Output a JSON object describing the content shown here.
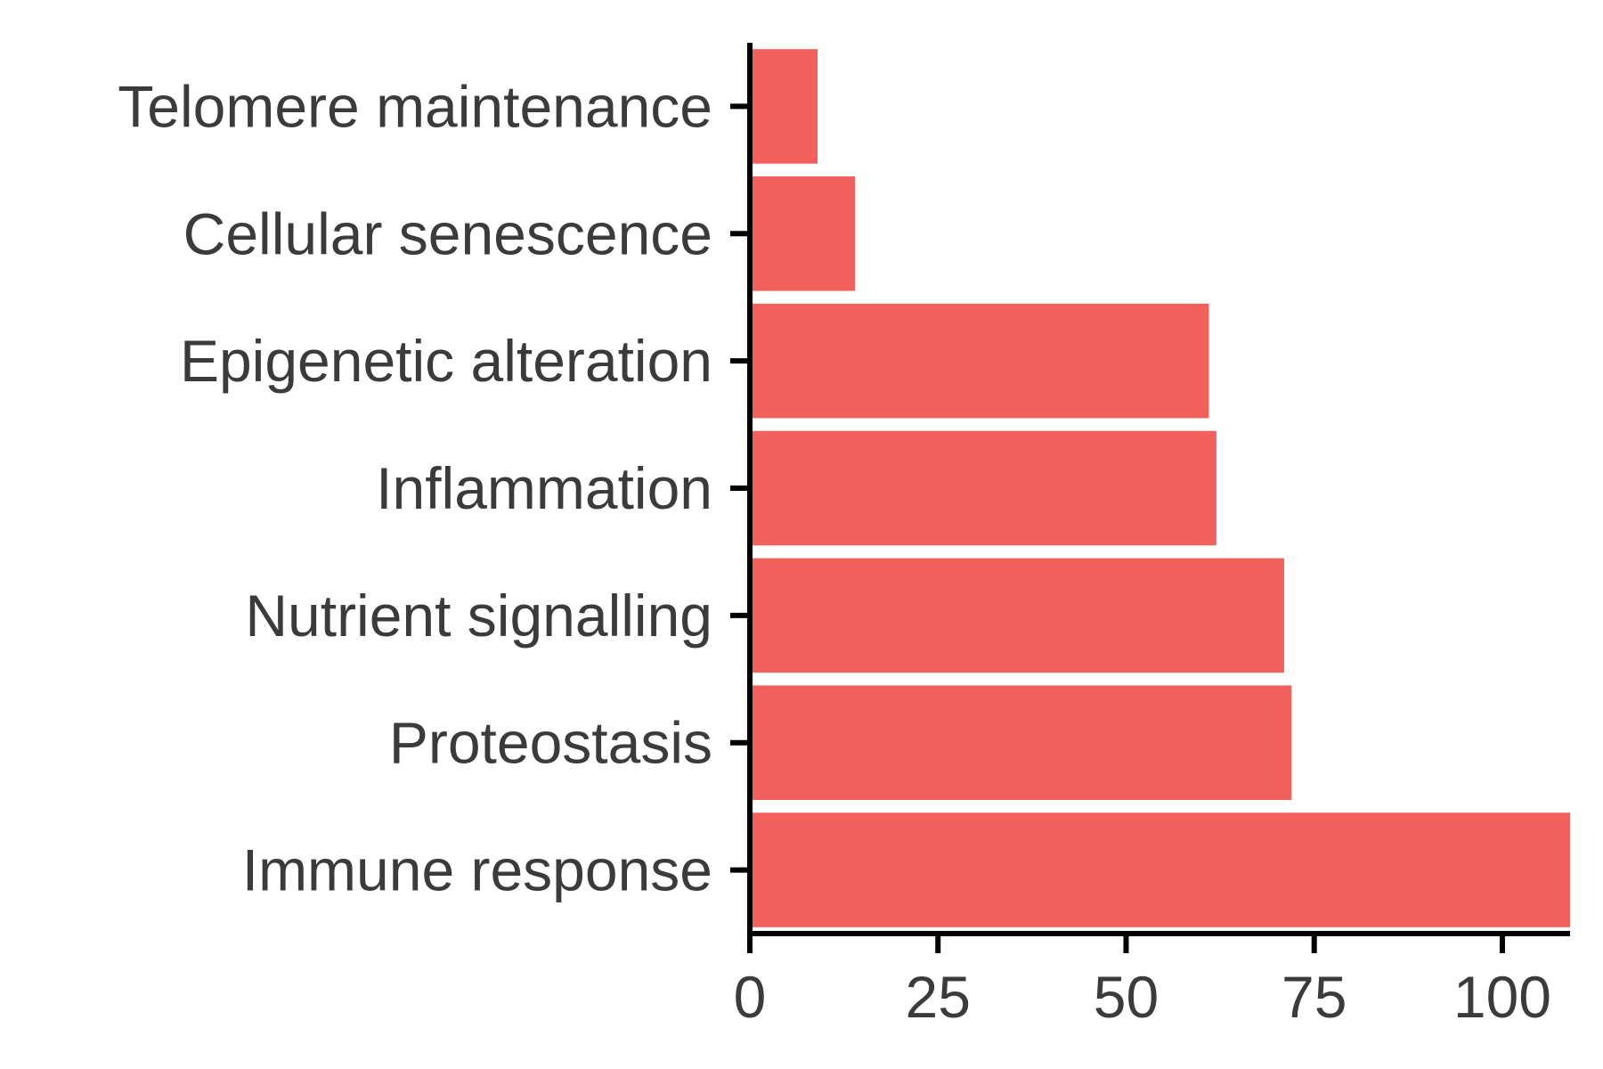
{
  "chart_data": {
    "type": "bar",
    "orientation": "horizontal",
    "title": "",
    "xlabel": "",
    "ylabel": "",
    "categories": [
      "Telomere maintenance",
      "Cellular senescence",
      "Epigenetic alteration",
      "Inflammation",
      "Nutrient signalling",
      "Proteostasis",
      "Immune response"
    ],
    "values": [
      9,
      14,
      61,
      62,
      71,
      72,
      109
    ],
    "xlim": [
      0,
      109
    ],
    "xticks": [
      0,
      25,
      50,
      75,
      100
    ],
    "xtick_labels": [
      "0",
      "25",
      "50",
      "75",
      "100"
    ],
    "bar_color": "#f2605c",
    "axis_color": "#000000",
    "text_color": "#3b3b3b",
    "grid": false,
    "legend": "none"
  }
}
